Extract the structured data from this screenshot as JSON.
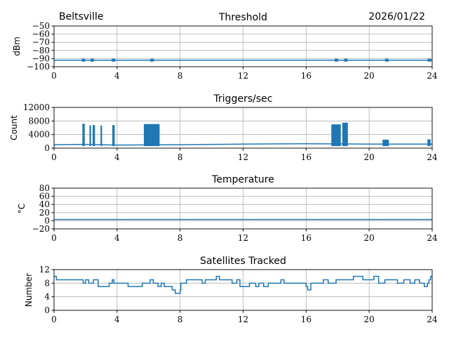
{
  "header": {
    "left": "Beltsville",
    "right": "2026/01/22"
  },
  "colors": {
    "series": "#1f77b4",
    "grid": "#b0b0b0"
  },
  "chart_data": [
    {
      "type": "line",
      "title": "Threshold",
      "ylabel": "dBm",
      "xlim": [
        0,
        24
      ],
      "ylim": [
        -100,
        -50
      ],
      "xticks": [
        "0",
        "4",
        "8",
        "12",
        "16",
        "20",
        "24"
      ],
      "yticks": [
        "−50",
        "−60",
        "−70",
        "−80",
        "−90",
        "−100"
      ],
      "ytick_values": [
        -50,
        -60,
        -70,
        -80,
        -90,
        -100
      ],
      "points": [
        [
          0,
          -92
        ],
        [
          24,
          -92
        ]
      ],
      "bursts": []
    },
    {
      "type": "line",
      "title": "Triggers/sec",
      "ylabel": "Count",
      "xlim": [
        0,
        24
      ],
      "ylim": [
        0,
        12000
      ],
      "xticks": [
        "0",
        "4",
        "8",
        "12",
        "16",
        "20",
        "24"
      ],
      "yticks": [
        "12000",
        "8000",
        "4000",
        "0"
      ],
      "ytick_values": [
        12000,
        8000,
        4000,
        0
      ],
      "points": [
        [
          0,
          1000
        ],
        [
          2,
          1100
        ],
        [
          4,
          900
        ],
        [
          8,
          1000
        ],
        [
          12,
          1200
        ],
        [
          16,
          1300
        ],
        [
          20,
          1200
        ],
        [
          24,
          1200
        ]
      ],
      "bursts": [
        [
          1.8,
          1.95,
          7200
        ],
        [
          2.25,
          2.35,
          6700
        ],
        [
          2.45,
          2.6,
          6800
        ],
        [
          2.95,
          3.05,
          6700
        ],
        [
          3.7,
          3.85,
          6800
        ],
        [
          5.7,
          6.7,
          7100
        ],
        [
          17.6,
          18.2,
          7000
        ],
        [
          18.3,
          18.65,
          7500
        ],
        [
          20.85,
          21.25,
          2500
        ],
        [
          23.7,
          23.9,
          2600
        ]
      ]
    },
    {
      "type": "line",
      "title": "Temperature",
      "ylabel": "°C",
      "xlim": [
        0,
        24
      ],
      "ylim": [
        -20,
        80
      ],
      "xticks": [
        "0",
        "4",
        "8",
        "12",
        "16",
        "20",
        "24"
      ],
      "yticks": [
        "80",
        "60",
        "40",
        "20",
        "0",
        "−20"
      ],
      "ytick_values": [
        80,
        60,
        40,
        20,
        0,
        -20
      ],
      "points": [
        [
          0,
          3
        ],
        [
          24,
          3
        ]
      ],
      "bursts": []
    },
    {
      "type": "line",
      "title": "Satellites Tracked",
      "ylabel": "Number",
      "xlim": [
        0,
        24
      ],
      "ylim": [
        0,
        12
      ],
      "xticks": [
        "0",
        "4",
        "8",
        "12",
        "16",
        "20",
        "24"
      ],
      "yticks": [
        "12",
        "8",
        "4",
        "0"
      ],
      "ytick_values": [
        12,
        8,
        4,
        0
      ],
      "step": true,
      "points": [
        [
          0,
          10
        ],
        [
          0.15,
          9
        ],
        [
          1.8,
          9
        ],
        [
          1.85,
          8
        ],
        [
          2.0,
          9
        ],
        [
          2.2,
          8
        ],
        [
          2.5,
          9
        ],
        [
          2.8,
          7
        ],
        [
          3.2,
          7
        ],
        [
          3.5,
          8
        ],
        [
          3.7,
          9
        ],
        [
          3.8,
          8
        ],
        [
          4.5,
          8
        ],
        [
          4.7,
          7
        ],
        [
          5.0,
          7
        ],
        [
          5.6,
          8
        ],
        [
          6.1,
          9
        ],
        [
          6.3,
          8
        ],
        [
          6.6,
          7
        ],
        [
          6.8,
          8
        ],
        [
          7.0,
          7
        ],
        [
          7.5,
          6
        ],
        [
          7.7,
          5
        ],
        [
          8.0,
          6
        ],
        [
          8.05,
          8
        ],
        [
          8.4,
          9
        ],
        [
          9.4,
          8
        ],
        [
          9.6,
          9
        ],
        [
          10.3,
          10
        ],
        [
          10.5,
          9
        ],
        [
          11.3,
          8
        ],
        [
          11.6,
          9
        ],
        [
          11.8,
          7
        ],
        [
          12.4,
          8
        ],
        [
          12.8,
          7
        ],
        [
          13.0,
          8
        ],
        [
          13.3,
          7
        ],
        [
          13.6,
          8
        ],
        [
          14.4,
          9
        ],
        [
          14.6,
          8
        ],
        [
          16.0,
          7
        ],
        [
          16.1,
          6
        ],
        [
          16.3,
          8
        ],
        [
          17.1,
          9
        ],
        [
          17.4,
          8
        ],
        [
          17.9,
          9
        ],
        [
          18.6,
          9
        ],
        [
          19.0,
          10
        ],
        [
          19.6,
          9
        ],
        [
          20.3,
          10
        ],
        [
          20.6,
          8
        ],
        [
          21.0,
          9
        ],
        [
          21.8,
          8
        ],
        [
          22.2,
          9
        ],
        [
          22.6,
          8
        ],
        [
          22.9,
          9
        ],
        [
          23.2,
          8
        ],
        [
          23.5,
          7
        ],
        [
          23.7,
          8
        ],
        [
          23.8,
          9
        ],
        [
          23.9,
          10
        ],
        [
          24,
          10
        ]
      ],
      "bursts": []
    }
  ]
}
